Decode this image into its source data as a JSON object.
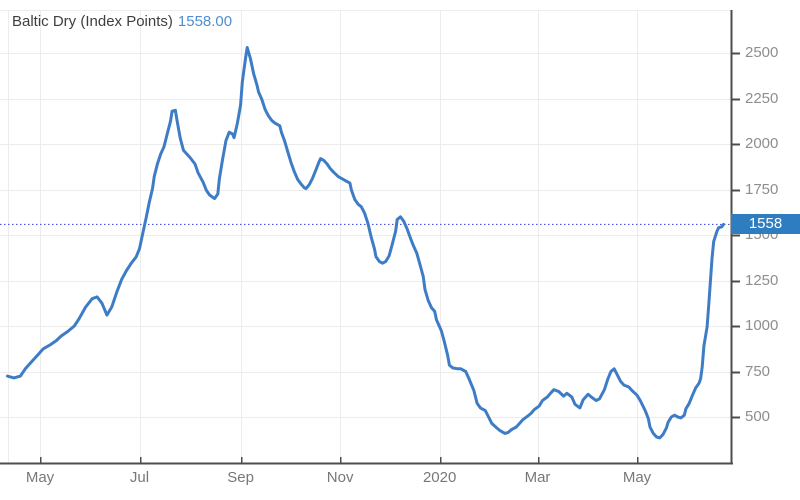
{
  "header": {
    "title": "Baltic Dry (Index Points)",
    "value": "1558.00"
  },
  "badge": {
    "label": "1558"
  },
  "colors": {
    "background": "#ffffff",
    "line": "#3e7dc6",
    "badge_bg": "#2f7dc1",
    "badge_text": "#ffffff",
    "current_dotted_line": "#4b55d6",
    "grid": "#ececec",
    "axis": "#4d4d4d",
    "y_tick_label": "#8e8e8e",
    "x_tick_label": "#787878",
    "title_text": "#3f3f3f",
    "value_text": "#4e8fd1"
  },
  "chart_data": {
    "type": "line",
    "title": "Baltic Dry (Index Points)",
    "ylabel": "Index Points",
    "current_value": 1558.0,
    "current_value_badge": "1558",
    "ylim": [
      240,
      2735
    ],
    "grid": true,
    "legend_position": "none",
    "y_axis": {
      "ticks": [
        2500,
        2250,
        2000,
        1750,
        1500,
        1250,
        1000,
        750,
        500
      ],
      "side": "right"
    },
    "x_axis": {
      "ticks": [
        {
          "label": "May",
          "date": "2019-05-01"
        },
        {
          "label": "Jul",
          "date": "2019-07-01"
        },
        {
          "label": "Sep",
          "date": "2019-09-01"
        },
        {
          "label": "Nov",
          "date": "2019-11-01"
        },
        {
          "label": "2020",
          "date": "2020-01-01"
        },
        {
          "label": "Mar",
          "date": "2020-03-01"
        },
        {
          "label": "May",
          "date": "2020-05-01"
        }
      ]
    },
    "series": [
      {
        "name": "Baltic Dry",
        "points": [
          [
            "2019-04-11",
            725
          ],
          [
            "2019-04-15",
            715
          ],
          [
            "2019-04-19",
            725
          ],
          [
            "2019-04-22",
            765
          ],
          [
            "2019-04-26",
            805
          ],
          [
            "2019-04-30",
            845
          ],
          [
            "2019-05-03",
            875
          ],
          [
            "2019-05-07",
            895
          ],
          [
            "2019-05-11",
            920
          ],
          [
            "2019-05-14",
            945
          ],
          [
            "2019-05-18",
            970
          ],
          [
            "2019-05-22",
            1000
          ],
          [
            "2019-05-25",
            1040
          ],
          [
            "2019-05-29",
            1105
          ],
          [
            "2019-06-02",
            1150
          ],
          [
            "2019-06-05",
            1160
          ],
          [
            "2019-06-08",
            1125
          ],
          [
            "2019-06-11",
            1060
          ],
          [
            "2019-06-14",
            1105
          ],
          [
            "2019-06-17",
            1185
          ],
          [
            "2019-06-20",
            1255
          ],
          [
            "2019-06-23",
            1305
          ],
          [
            "2019-06-26",
            1345
          ],
          [
            "2019-06-29",
            1380
          ],
          [
            "2019-07-01",
            1425
          ],
          [
            "2019-07-03",
            1510
          ],
          [
            "2019-07-05",
            1590
          ],
          [
            "2019-07-07",
            1680
          ],
          [
            "2019-07-09",
            1755
          ],
          [
            "2019-07-10",
            1820
          ],
          [
            "2019-07-12",
            1890
          ],
          [
            "2019-07-14",
            1945
          ],
          [
            "2019-07-16",
            1985
          ],
          [
            "2019-07-18",
            2055
          ],
          [
            "2019-07-20",
            2125
          ],
          [
            "2019-07-21",
            2180
          ],
          [
            "2019-07-23",
            2185
          ],
          [
            "2019-07-24",
            2130
          ],
          [
            "2019-07-26",
            2030
          ],
          [
            "2019-07-28",
            1965
          ],
          [
            "2019-07-30",
            1945
          ],
          [
            "2019-08-01",
            1925
          ],
          [
            "2019-08-04",
            1890
          ],
          [
            "2019-08-06",
            1840
          ],
          [
            "2019-08-09",
            1790
          ],
          [
            "2019-08-11",
            1745
          ],
          [
            "2019-08-13",
            1720
          ],
          [
            "2019-08-16",
            1700
          ],
          [
            "2019-08-18",
            1725
          ],
          [
            "2019-08-19",
            1810
          ],
          [
            "2019-08-21",
            1920
          ],
          [
            "2019-08-23",
            2020
          ],
          [
            "2019-08-25",
            2065
          ],
          [
            "2019-08-27",
            2055
          ],
          [
            "2019-08-28",
            2035
          ],
          [
            "2019-08-30",
            2115
          ],
          [
            "2019-09-01",
            2215
          ],
          [
            "2019-09-02",
            2340
          ],
          [
            "2019-09-04",
            2470
          ],
          [
            "2019-09-05",
            2530
          ],
          [
            "2019-09-07",
            2470
          ],
          [
            "2019-09-09",
            2385
          ],
          [
            "2019-09-11",
            2325
          ],
          [
            "2019-09-12",
            2285
          ],
          [
            "2019-09-14",
            2245
          ],
          [
            "2019-09-16",
            2190
          ],
          [
            "2019-09-18",
            2155
          ],
          [
            "2019-09-20",
            2130
          ],
          [
            "2019-09-22",
            2115
          ],
          [
            "2019-09-25",
            2100
          ],
          [
            "2019-09-26",
            2065
          ],
          [
            "2019-09-28",
            2015
          ],
          [
            "2019-09-30",
            1955
          ],
          [
            "2019-10-02",
            1895
          ],
          [
            "2019-10-04",
            1845
          ],
          [
            "2019-10-06",
            1805
          ],
          [
            "2019-10-08",
            1780
          ],
          [
            "2019-10-10",
            1760
          ],
          [
            "2019-10-11",
            1755
          ],
          [
            "2019-10-13",
            1775
          ],
          [
            "2019-10-15",
            1810
          ],
          [
            "2019-10-17",
            1855
          ],
          [
            "2019-10-19",
            1900
          ],
          [
            "2019-10-20",
            1920
          ],
          [
            "2019-10-22",
            1910
          ],
          [
            "2019-10-24",
            1890
          ],
          [
            "2019-10-26",
            1865
          ],
          [
            "2019-10-28",
            1845
          ],
          [
            "2019-10-31",
            1820
          ],
          [
            "2019-11-02",
            1810
          ],
          [
            "2019-11-04",
            1800
          ],
          [
            "2019-11-07",
            1785
          ],
          [
            "2019-11-08",
            1745
          ],
          [
            "2019-11-10",
            1695
          ],
          [
            "2019-11-12",
            1670
          ],
          [
            "2019-11-14",
            1655
          ],
          [
            "2019-11-16",
            1620
          ],
          [
            "2019-11-18",
            1565
          ],
          [
            "2019-11-20",
            1490
          ],
          [
            "2019-11-22",
            1425
          ],
          [
            "2019-11-23",
            1380
          ],
          [
            "2019-11-25",
            1355
          ],
          [
            "2019-11-27",
            1345
          ],
          [
            "2019-11-29",
            1355
          ],
          [
            "2019-12-01",
            1385
          ],
          [
            "2019-12-03",
            1450
          ],
          [
            "2019-12-05",
            1520
          ],
          [
            "2019-12-06",
            1585
          ],
          [
            "2019-12-08",
            1600
          ],
          [
            "2019-12-10",
            1575
          ],
          [
            "2019-12-12",
            1535
          ],
          [
            "2019-12-14",
            1485
          ],
          [
            "2019-12-16",
            1440
          ],
          [
            "2019-12-18",
            1400
          ],
          [
            "2019-12-20",
            1335
          ],
          [
            "2019-12-22",
            1270
          ],
          [
            "2019-12-23",
            1200
          ],
          [
            "2019-12-25",
            1140
          ],
          [
            "2019-12-27",
            1100
          ],
          [
            "2019-12-29",
            1080
          ],
          [
            "2019-12-30",
            1035
          ],
          [
            "2020-01-02",
            975
          ],
          [
            "2020-01-04",
            910
          ],
          [
            "2020-01-06",
            835
          ],
          [
            "2020-01-07",
            785
          ],
          [
            "2020-01-09",
            770
          ],
          [
            "2020-01-12",
            765
          ],
          [
            "2020-01-14",
            765
          ],
          [
            "2020-01-17",
            750
          ],
          [
            "2020-01-19",
            710
          ],
          [
            "2020-01-22",
            645
          ],
          [
            "2020-01-24",
            575
          ],
          [
            "2020-01-26",
            550
          ],
          [
            "2020-01-29",
            535
          ],
          [
            "2020-01-31",
            500
          ],
          [
            "2020-02-02",
            465
          ],
          [
            "2020-02-05",
            440
          ],
          [
            "2020-02-07",
            425
          ],
          [
            "2020-02-10",
            410
          ],
          [
            "2020-02-12",
            415
          ],
          [
            "2020-02-14",
            430
          ],
          [
            "2020-02-17",
            445
          ],
          [
            "2020-02-19",
            465
          ],
          [
            "2020-02-21",
            485
          ],
          [
            "2020-02-24",
            505
          ],
          [
            "2020-02-26",
            520
          ],
          [
            "2020-02-28",
            540
          ],
          [
            "2020-03-02",
            560
          ],
          [
            "2020-03-04",
            590
          ],
          [
            "2020-03-07",
            610
          ],
          [
            "2020-03-09",
            630
          ],
          [
            "2020-03-11",
            650
          ],
          [
            "2020-03-14",
            640
          ],
          [
            "2020-03-17",
            615
          ],
          [
            "2020-03-19",
            630
          ],
          [
            "2020-03-22",
            610
          ],
          [
            "2020-03-24",
            570
          ],
          [
            "2020-03-27",
            550
          ],
          [
            "2020-03-29",
            595
          ],
          [
            "2020-04-01",
            625
          ],
          [
            "2020-04-03",
            610
          ],
          [
            "2020-04-06",
            590
          ],
          [
            "2020-04-08",
            600
          ],
          [
            "2020-04-11",
            650
          ],
          [
            "2020-04-13",
            705
          ],
          [
            "2020-04-15",
            750
          ],
          [
            "2020-04-17",
            765
          ],
          [
            "2020-04-19",
            730
          ],
          [
            "2020-04-21",
            695
          ],
          [
            "2020-04-23",
            675
          ],
          [
            "2020-04-26",
            665
          ],
          [
            "2020-04-28",
            645
          ],
          [
            "2020-05-01",
            620
          ],
          [
            "2020-05-03",
            590
          ],
          [
            "2020-05-06",
            535
          ],
          [
            "2020-05-08",
            490
          ],
          [
            "2020-05-09",
            445
          ],
          [
            "2020-05-11",
            410
          ],
          [
            "2020-05-13",
            390
          ],
          [
            "2020-05-15",
            385
          ],
          [
            "2020-05-17",
            405
          ],
          [
            "2020-05-19",
            440
          ],
          [
            "2020-05-20",
            470
          ],
          [
            "2020-05-22",
            500
          ],
          [
            "2020-05-24",
            510
          ],
          [
            "2020-05-26",
            500
          ],
          [
            "2020-05-28",
            495
          ],
          [
            "2020-05-30",
            510
          ],
          [
            "2020-05-31",
            545
          ],
          [
            "2020-06-02",
            575
          ],
          [
            "2020-06-04",
            620
          ],
          [
            "2020-06-06",
            660
          ],
          [
            "2020-06-08",
            685
          ],
          [
            "2020-06-09",
            710
          ],
          [
            "2020-06-10",
            775
          ],
          [
            "2020-06-11",
            890
          ],
          [
            "2020-06-13",
            995
          ],
          [
            "2020-06-14",
            1120
          ],
          [
            "2020-06-15",
            1245
          ],
          [
            "2020-06-16",
            1370
          ],
          [
            "2020-06-17",
            1465
          ],
          [
            "2020-06-19",
            1520
          ],
          [
            "2020-06-20",
            1540
          ],
          [
            "2020-06-22",
            1545
          ],
          [
            "2020-06-23",
            1558
          ]
        ]
      }
    ]
  }
}
